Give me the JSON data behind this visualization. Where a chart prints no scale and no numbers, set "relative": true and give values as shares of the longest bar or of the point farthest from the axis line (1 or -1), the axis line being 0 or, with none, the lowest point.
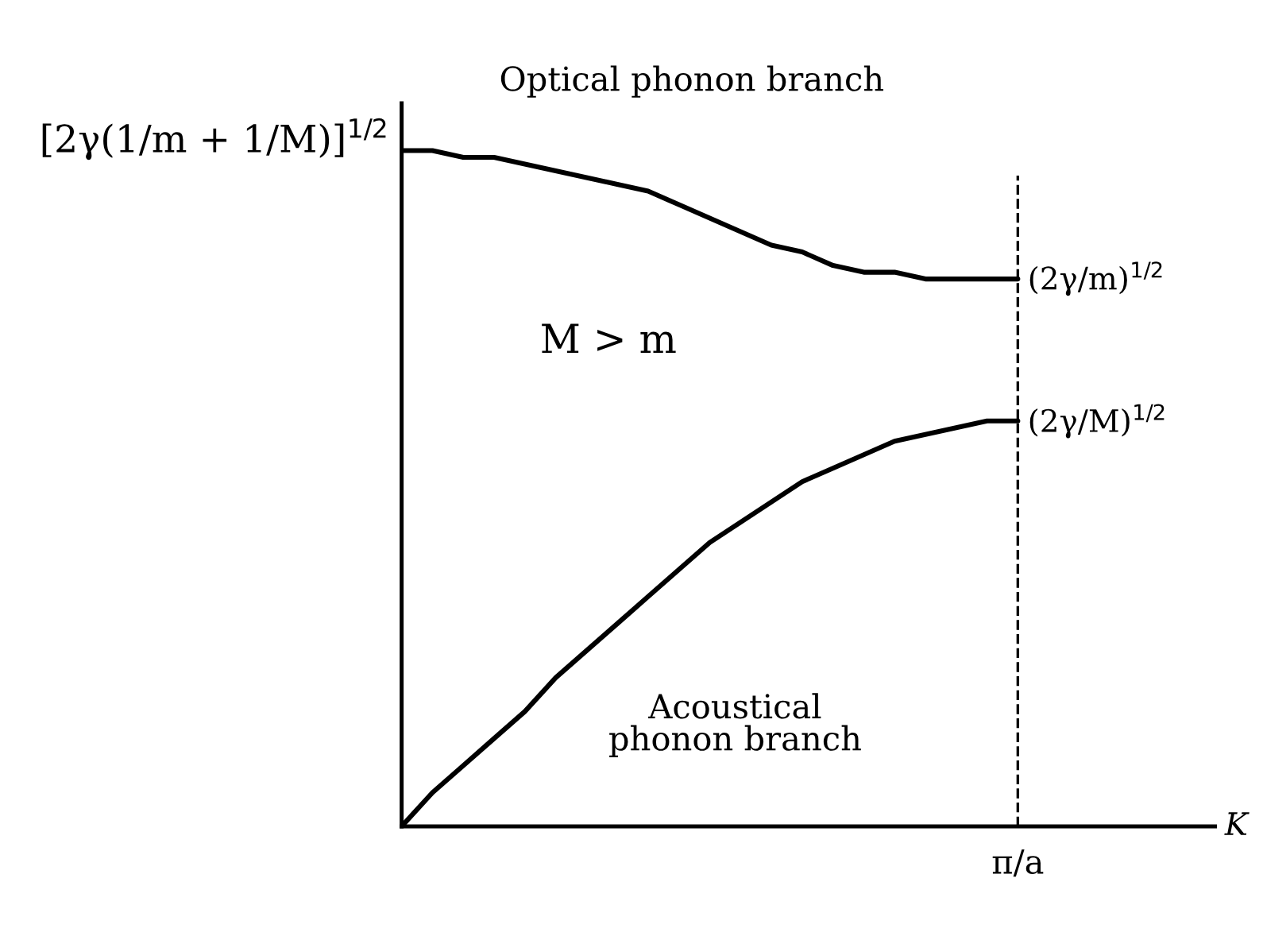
{
  "chart_data": {
    "type": "line",
    "relative": true,
    "categories": [
      null,
      null,
      null,
      null,
      null,
      null,
      null,
      null,
      null,
      null,
      null,
      null,
      null,
      null,
      null,
      null,
      null,
      null,
      null,
      null,
      null
    ],
    "series": [
      {
        "color": "#000000",
        "values": [
          1.0,
          1.0,
          0.99,
          0.99,
          0.98,
          0.97,
          0.96,
          0.95,
          0.94,
          0.92,
          0.9,
          0.88,
          0.86,
          0.85,
          0.83,
          0.82,
          0.82,
          0.81,
          0.81,
          0.81,
          0.81
        ]
      },
      {
        "color": "#000000",
        "values": [
          0,
          0.05,
          0.09,
          0.13,
          0.17,
          0.22,
          0.26,
          0.3,
          0.34,
          0.38,
          0.42,
          0.45,
          0.48,
          0.51,
          0.53,
          0.55,
          0.57,
          0.58,
          0.59,
          0.6,
          0.6
        ]
      }
    ],
    "ref_lines": [
      {
        "axis": "x",
        "label": "π/a",
        "line_style": "dashed",
        "color": "#000000"
      }
    ],
    "annotations": [
      "[2γ(1/m + 1/M)]$^{1/2}$",
      "(2γ/m)$^{1/2}$",
      "(2γ/M)$^{1/2}$",
      "K",
      "Optical phonon branch",
      "M > m",
      "Acoustical\nphonon branch"
    ],
    "grid": false,
    "legend": false,
    "marker": "none",
    "line_style": "solid"
  }
}
